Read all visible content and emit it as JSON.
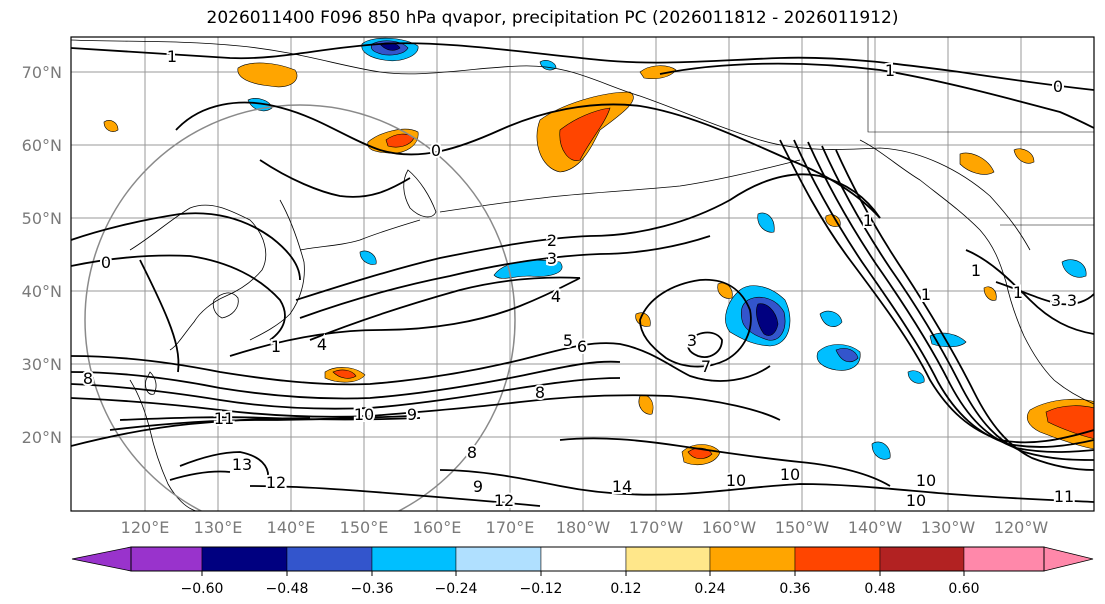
{
  "title": "2026011400 F096 850 hPa qvapor, precipitation PC (2026011812 - 2026011912)",
  "lat_labels": [
    "70°N",
    "60°N",
    "50°N",
    "40°N",
    "30°N",
    "20°N"
  ],
  "lon_labels": [
    "120°E",
    "130°E",
    "140°E",
    "150°E",
    "160°E",
    "170°E",
    "180°W",
    "170°W",
    "160°W",
    "150°W",
    "140°W",
    "130°W",
    "120°W"
  ],
  "contour_labels": [
    "1",
    "1",
    "0",
    "0",
    "0",
    "1",
    "1",
    "1",
    "1",
    "1",
    "2",
    "3",
    "3",
    "3",
    "3",
    "4",
    "4",
    "5",
    "6",
    "7",
    "8",
    "8",
    "8",
    "9",
    "9",
    "10",
    "10",
    "10",
    "10",
    "10",
    "11",
    "11",
    "12",
    "12",
    "13",
    "14"
  ],
  "colorbar": {
    "ticks": [
      "−0.60",
      "−0.48",
      "−0.36",
      "−0.24",
      "−0.12",
      "0.12",
      "0.24",
      "0.36",
      "0.48",
      "0.60"
    ],
    "colors": [
      "#9933cc",
      "#000080",
      "#3355cc",
      "#00bfff",
      "#b0e0ff",
      "#ffffff",
      "#ffe78a",
      "#ffa500",
      "#ff4500",
      "#b22222",
      "#ff88aa"
    ]
  }
}
